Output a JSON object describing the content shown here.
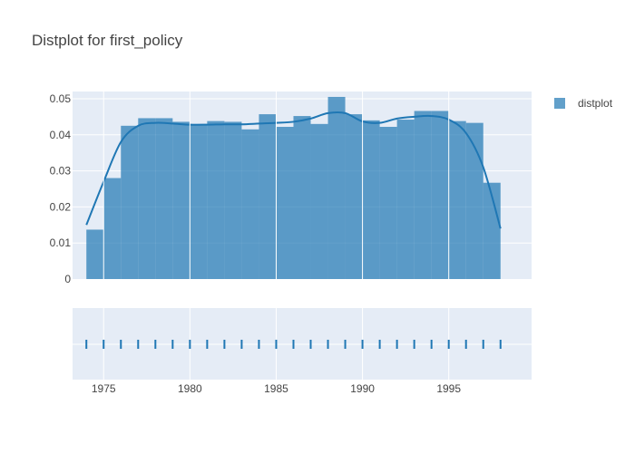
{
  "chart_data": {
    "type": "bar",
    "title": "Distplot for first_policy",
    "xlabel": "",
    "ylabel": "",
    "xlim": [
      1973.2,
      1999.8
    ],
    "ylim": [
      0,
      0.052
    ],
    "bin_width": 1,
    "bins_start": [
      1974,
      1975,
      1976,
      1977,
      1978,
      1979,
      1980,
      1981,
      1982,
      1983,
      1984,
      1985,
      1986,
      1987,
      1988,
      1989,
      1990,
      1991,
      1992,
      1993,
      1994,
      1995,
      1996,
      1997
    ],
    "values": [
      0.0137,
      0.028,
      0.0425,
      0.0446,
      0.0446,
      0.0436,
      0.043,
      0.0438,
      0.0436,
      0.0415,
      0.0457,
      0.0422,
      0.0452,
      0.043,
      0.0505,
      0.0457,
      0.044,
      0.0422,
      0.0442,
      0.0466,
      0.0466,
      0.0438,
      0.0433,
      0.0267
    ],
    "kde": {
      "x": [
        1974,
        1975,
        1976,
        1977,
        1978,
        1979,
        1980,
        1981,
        1982,
        1983,
        1984,
        1985,
        1986,
        1987,
        1988,
        1989,
        1990,
        1991,
        1992,
        1993,
        1994,
        1995,
        1996,
        1997,
        1998
      ],
      "y": [
        0.015,
        0.027,
        0.038,
        0.0425,
        0.0433,
        0.0431,
        0.0428,
        0.0428,
        0.0429,
        0.0429,
        0.0431,
        0.0433,
        0.0436,
        0.0445,
        0.046,
        0.046,
        0.0437,
        0.0433,
        0.0445,
        0.045,
        0.0452,
        0.0442,
        0.0405,
        0.031,
        0.014
      ]
    },
    "rug": [
      1974,
      1975,
      1976,
      1977,
      1978,
      1979,
      1980,
      1981,
      1982,
      1983,
      1984,
      1985,
      1986,
      1987,
      1988,
      1989,
      1990,
      1991,
      1992,
      1993,
      1994,
      1995,
      1996,
      1997,
      1998
    ],
    "yticks": [
      0,
      0.01,
      0.02,
      0.03,
      0.04,
      0.05
    ],
    "ytick_labels": [
      "0",
      "0.01",
      "0.02",
      "0.03",
      "0.04",
      "0.05"
    ],
    "xticks": [
      1975,
      1980,
      1985,
      1990,
      1995
    ],
    "xtick_labels": [
      "1975",
      "1980",
      "1985",
      "1990",
      "1995"
    ],
    "legend": [
      {
        "name": "distplot",
        "color": "#1f77b4"
      }
    ],
    "legend_position": "top-right",
    "colors": {
      "bar": "#1f77b4",
      "line": "#1f77b4",
      "plot_bg": "#e5ecf6",
      "grid": "#ffffff"
    },
    "grid": true
  }
}
